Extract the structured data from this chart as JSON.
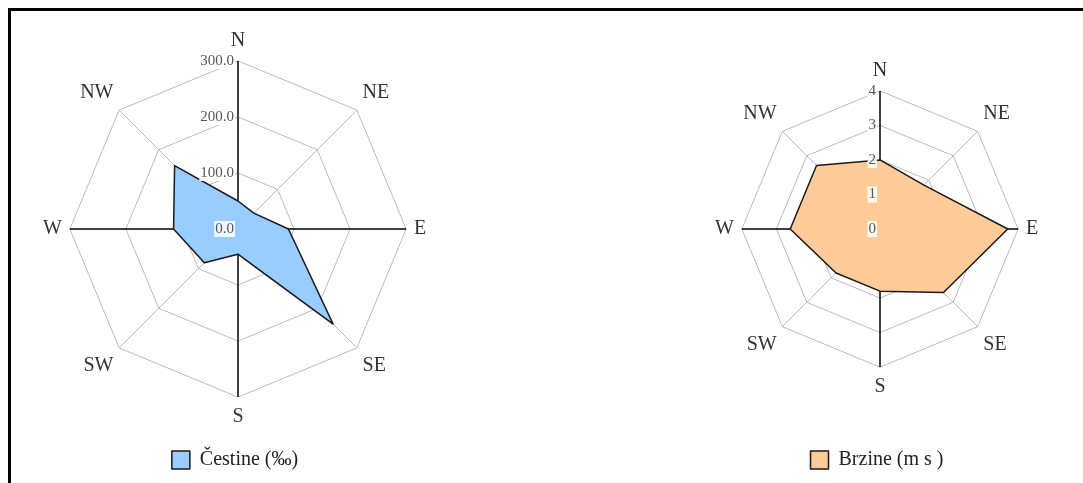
{
  "chart_data": [
    {
      "type": "radar",
      "categories": [
        "N",
        "NE",
        "E",
        "SE",
        "S",
        "SW",
        "W",
        "NW"
      ],
      "series": [
        {
          "name": "Čestine (‰)",
          "color": "#99ccff",
          "values": [
            50,
            40,
            90,
            240,
            45,
            85,
            115,
            160
          ]
        }
      ],
      "ylim": [
        0,
        300
      ],
      "yticks": [
        {
          "value": 0,
          "label": "0.0"
        },
        {
          "value": 100,
          "label": "100.0"
        },
        {
          "value": 200,
          "label": "200.0"
        },
        {
          "value": 300,
          "label": "300.0"
        }
      ],
      "grid": true,
      "legend": "bottom",
      "marker": "none",
      "line_style": "solid"
    },
    {
      "type": "radar",
      "categories": [
        "N",
        "NE",
        "E",
        "SE",
        "S",
        "SW",
        "W",
        "NW"
      ],
      "series": [
        {
          "name": "Brzine (m s )",
          "color": "#ffcc99",
          "values": [
            2.0,
            1.8,
            3.7,
            2.6,
            1.8,
            1.8,
            2.6,
            2.6
          ]
        }
      ],
      "ylim": [
        0,
        4
      ],
      "yticks": [
        0,
        1,
        2,
        3,
        4
      ],
      "grid": true,
      "legend": "bottom",
      "marker": "none",
      "line_style": "solid"
    }
  ]
}
